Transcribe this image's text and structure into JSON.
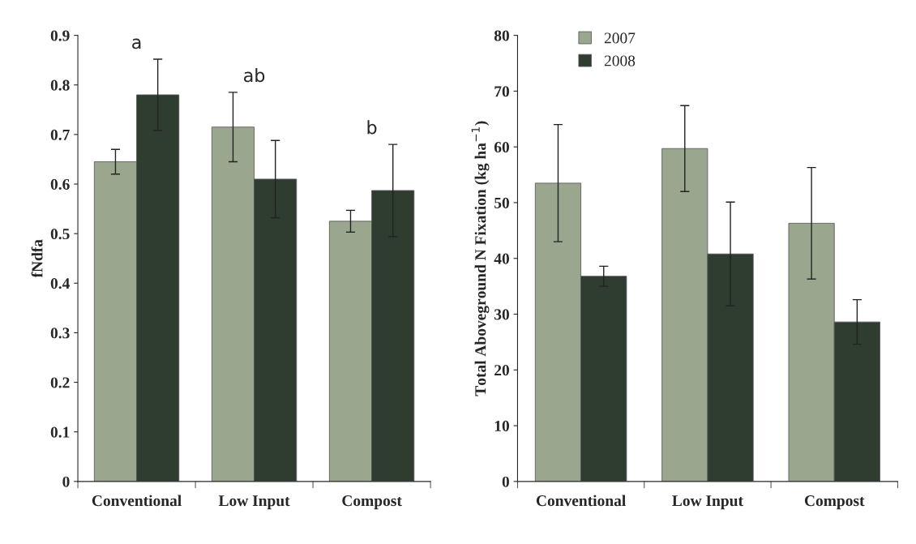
{
  "chart_data": [
    {
      "type": "bar",
      "ylabel": "fNdfa",
      "categories": [
        "Conventional",
        "Low Input",
        "Compost"
      ],
      "ylim": [
        0,
        0.9
      ],
      "yticks": [
        0,
        0.1,
        0.2,
        0.3,
        0.4,
        0.5,
        0.6,
        0.7,
        0.8,
        0.9
      ],
      "grid": false,
      "legend": "top right",
      "series": [
        {
          "name": "2007",
          "color": "#9aa68e",
          "values": [
            0.645,
            0.715,
            0.525
          ],
          "errors": [
            0.025,
            0.07,
            0.022
          ]
        },
        {
          "name": "2008",
          "color": "#2e3d30",
          "values": [
            0.78,
            0.61,
            0.587
          ],
          "errors": [
            0.072,
            0.078,
            0.093
          ]
        }
      ],
      "annotations": [
        "a",
        "ab",
        "b"
      ]
    },
    {
      "type": "bar",
      "ylabel": "Total Aboveground N Fixation (kg ha$^{−1}$)",
      "categories": [
        "Conventional",
        "Low Input",
        "Compost"
      ],
      "ylim": [
        0,
        80
      ],
      "yticks": [
        0,
        10,
        20,
        30,
        40,
        50,
        60,
        70,
        80
      ],
      "grid": false,
      "series": [
        {
          "name": "2007",
          "color": "#9aa68e",
          "values": [
            53.5,
            59.7,
            46.3
          ],
          "errors": [
            10.5,
            7.7,
            10
          ]
        },
        {
          "name": "2008",
          "color": "#2e3d30",
          "values": [
            36.8,
            40.8,
            28.6
          ],
          "errors": [
            1.8,
            9.3,
            4
          ]
        }
      ]
    }
  ]
}
